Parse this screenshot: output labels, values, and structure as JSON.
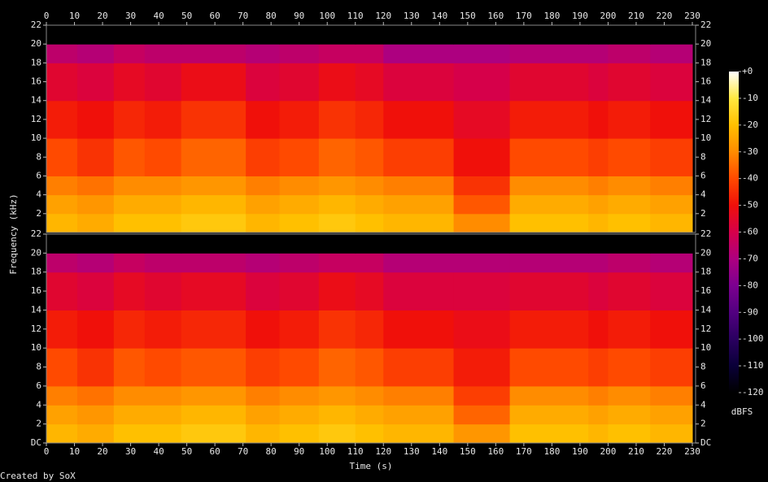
{
  "footer": "Created by SoX",
  "chart_data": [
    {
      "type": "heatmap",
      "ylabel": "Frequency (kHz)",
      "zlabel": "dBFS",
      "zlim": [
        -120,
        0
      ],
      "zticks": [
        {
          "value": 0,
          "label": "+0"
        },
        -10,
        -20,
        -30,
        -40,
        -50,
        -60,
        -70,
        -80,
        -90,
        -100,
        -110,
        -120
      ],
      "colorscale": [
        [
          -120,
          "#000000"
        ],
        [
          -110,
          "#0a0038"
        ],
        [
          -100,
          "#2a0060"
        ],
        [
          -90,
          "#520080"
        ],
        [
          -80,
          "#7c0090"
        ],
        [
          -70,
          "#ad0080"
        ],
        [
          -60,
          "#d6004a"
        ],
        [
          -50,
          "#f0100a"
        ],
        [
          -40,
          "#ff4a00"
        ],
        [
          -30,
          "#ff8c00"
        ],
        [
          -20,
          "#ffc000"
        ],
        [
          -10,
          "#ffe840"
        ],
        [
          0,
          "#ffffff"
        ]
      ],
      "xlim": [
        0,
        230
      ],
      "xticks": [
        0,
        10,
        20,
        30,
        40,
        50,
        60,
        70,
        80,
        90,
        100,
        110,
        120,
        130,
        140,
        150,
        160,
        170,
        180,
        190,
        200,
        210,
        220,
        230
      ],
      "ylim": [
        0,
        22
      ],
      "yticks": [
        2,
        4,
        6,
        8,
        10,
        12,
        14,
        16,
        18,
        20,
        22
      ],
      "x": [
        0,
        11,
        24,
        35,
        48,
        71,
        83,
        97,
        110,
        120,
        145,
        165,
        193,
        200,
        215,
        230
      ],
      "y": [
        0,
        2,
        4,
        6,
        10,
        14,
        18,
        20,
        22
      ],
      "values": [
        [
          -22,
          -24,
          -20,
          -20,
          -18,
          -22,
          -20,
          -18,
          -20,
          -22,
          -30,
          -20,
          -22,
          -20,
          -22
        ],
        [
          -26,
          -28,
          -24,
          -24,
          -22,
          -26,
          -24,
          -22,
          -24,
          -26,
          -38,
          -24,
          -26,
          -24,
          -26
        ],
        [
          -32,
          -34,
          -30,
          -30,
          -28,
          -32,
          -30,
          -28,
          -30,
          -32,
          -44,
          -30,
          -32,
          -30,
          -32
        ],
        [
          -40,
          -44,
          -38,
          -40,
          -36,
          -42,
          -40,
          -36,
          -38,
          -42,
          -50,
          -40,
          -42,
          -40,
          -42
        ],
        [
          -48,
          -50,
          -46,
          -48,
          -44,
          -50,
          -48,
          -44,
          -46,
          -50,
          -54,
          -48,
          -50,
          -48,
          -50
        ],
        [
          -56,
          -58,
          -54,
          -56,
          -52,
          -58,
          -56,
          -52,
          -54,
          -58,
          -60,
          -56,
          -58,
          -56,
          -58
        ],
        [
          -66,
          -68,
          -64,
          -66,
          -66,
          -68,
          -66,
          -64,
          -64,
          -70,
          -70,
          -68,
          -68,
          -66,
          -68
        ],
        [
          -120,
          -120,
          -120,
          -120,
          -120,
          -120,
          -120,
          -120,
          -120,
          -120,
          -120,
          -120,
          -120,
          -120,
          -120
        ]
      ]
    },
    {
      "type": "heatmap",
      "xlabel": "Time (s)",
      "xlim": [
        0,
        230
      ],
      "xticks": [
        0,
        10,
        20,
        30,
        40,
        50,
        60,
        70,
        80,
        90,
        100,
        110,
        120,
        130,
        140,
        150,
        160,
        170,
        180,
        190,
        200,
        210,
        220,
        230
      ],
      "ylim": [
        0,
        22
      ],
      "yticks": [
        {
          "value": 0,
          "label": "DC"
        },
        2,
        4,
        6,
        8,
        10,
        12,
        14,
        16,
        18,
        20,
        22
      ],
      "x": [
        0,
        11,
        24,
        35,
        48,
        71,
        83,
        97,
        110,
        120,
        145,
        165,
        193,
        200,
        215,
        230
      ],
      "y": [
        0,
        2,
        4,
        6,
        10,
        14,
        18,
        20,
        22
      ],
      "values": [
        [
          -22,
          -24,
          -20,
          -20,
          -18,
          -22,
          -20,
          -18,
          -20,
          -22,
          -28,
          -20,
          -22,
          -20,
          -22
        ],
        [
          -26,
          -28,
          -24,
          -24,
          -22,
          -26,
          -24,
          -22,
          -24,
          -26,
          -36,
          -24,
          -26,
          -24,
          -26
        ],
        [
          -32,
          -34,
          -30,
          -30,
          -28,
          -32,
          -30,
          -28,
          -30,
          -32,
          -42,
          -30,
          -32,
          -30,
          -32
        ],
        [
          -40,
          -44,
          -38,
          -40,
          -38,
          -42,
          -40,
          -36,
          -38,
          -42,
          -48,
          -40,
          -42,
          -40,
          -42
        ],
        [
          -48,
          -50,
          -46,
          -48,
          -46,
          -50,
          -48,
          -44,
          -46,
          -50,
          -52,
          -48,
          -50,
          -48,
          -50
        ],
        [
          -56,
          -58,
          -54,
          -56,
          -54,
          -58,
          -56,
          -52,
          -54,
          -58,
          -58,
          -56,
          -58,
          -56,
          -58
        ],
        [
          -66,
          -68,
          -64,
          -66,
          -66,
          -68,
          -66,
          -64,
          -64,
          -68,
          -68,
          -68,
          -68,
          -66,
          -68
        ],
        [
          -120,
          -120,
          -120,
          -120,
          -120,
          -120,
          -120,
          -120,
          -120,
          -120,
          -120,
          -120,
          -120,
          -120,
          -120
        ]
      ]
    }
  ]
}
